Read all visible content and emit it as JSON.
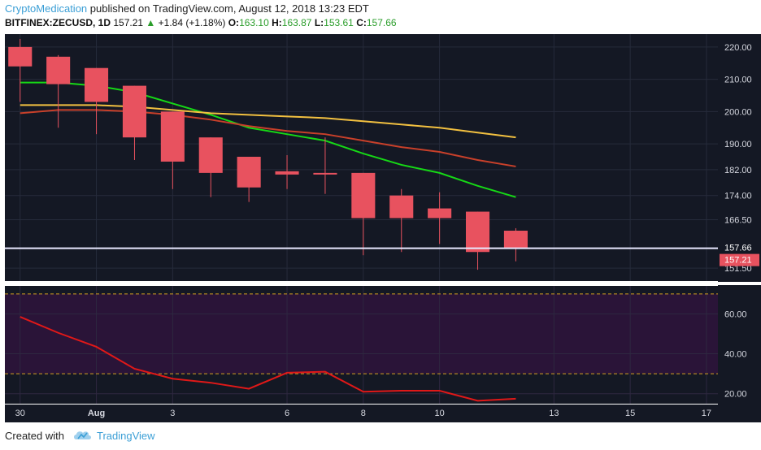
{
  "header": {
    "author": "CryptoMedication",
    "published_text": " published on TradingView.com, August 12, 2018 13:23 EDT"
  },
  "ticker": {
    "symbol": "BITFINEX:ZECUSD, 1D",
    "last": "157.21",
    "change_arrow": "▲",
    "change": "+1.84 (+1.18%)",
    "o_label": "O:",
    "o_value": "163.10",
    "h_label": "H:",
    "h_value": "163.87",
    "l_label": "L:",
    "l_value": "153.61",
    "c_label": "C:",
    "c_value": "157.66"
  },
  "footer": {
    "created_with": "Created with",
    "brand": "TradingView"
  },
  "colors": {
    "background": "#141824",
    "rsi_band": "#2a1438",
    "bull": "#e8525f",
    "bear": "#e8525f",
    "ma_fast": "#16d816",
    "ma_mid": "#c8402a",
    "ma_slow": "#f2c040",
    "rsi_line": "#e01818",
    "price_line": "#e8e8ff",
    "band_dash": "#d2a020",
    "label_bg": "#e8525f"
  },
  "chart_data": {
    "type": "candlestick",
    "title": "",
    "price_axis": {
      "min": 147.5,
      "max": 224,
      "ticks": [
        220.0,
        210.0,
        200.0,
        190.0,
        182.0,
        174.0,
        166.5,
        151.5
      ],
      "tick_labels": [
        "220.00",
        "210.00",
        "200.00",
        "190.00",
        "182.00",
        "174.00",
        "166.50",
        "151.50"
      ]
    },
    "current_price_labels": [
      {
        "value": 157.66,
        "label": "157.66"
      },
      {
        "value": 157.21,
        "label": "157.21"
      }
    ],
    "horizontal_line": 157.66,
    "x_axis": {
      "labels": [
        {
          "day": 0,
          "label": "30"
        },
        {
          "day": 2,
          "label": "Aug"
        },
        {
          "day": 4,
          "label": "3"
        },
        {
          "day": 7,
          "label": "6"
        },
        {
          "day": 9,
          "label": "8"
        },
        {
          "day": 11,
          "label": "10"
        },
        {
          "day": 14,
          "label": "13"
        },
        {
          "day": 16,
          "label": "15"
        },
        {
          "day": 18,
          "label": "17"
        }
      ],
      "day_range": [
        -0.4,
        18.3
      ]
    },
    "candles": [
      {
        "day": 0,
        "date": "Jul 30",
        "open": 220.0,
        "high": 222.5,
        "low": 203.0,
        "close": 214.0
      },
      {
        "day": 1,
        "date": "Jul 31",
        "open": 217.0,
        "high": 217.5,
        "low": 195.0,
        "close": 208.5
      },
      {
        "day": 2,
        "date": "Aug 1",
        "open": 213.5,
        "high": 213.5,
        "low": 193.0,
        "close": 203.0
      },
      {
        "day": 3,
        "date": "Aug 2",
        "open": 208.0,
        "high": 208.0,
        "low": 185.0,
        "close": 192.0
      },
      {
        "day": 4,
        "date": "Aug 3",
        "open": 200.0,
        "high": 200.0,
        "low": 176.0,
        "close": 184.5
      },
      {
        "day": 5,
        "date": "Aug 4",
        "open": 192.0,
        "high": 192.0,
        "low": 173.5,
        "close": 181.0
      },
      {
        "day": 6,
        "date": "Aug 5",
        "open": 186.0,
        "high": 186.0,
        "low": 172.0,
        "close": 176.5
      },
      {
        "day": 7,
        "date": "Aug 6",
        "open": 181.5,
        "high": 186.5,
        "low": 176.0,
        "close": 180.5
      },
      {
        "day": 8,
        "date": "Aug 7",
        "open": 181.0,
        "high": 192.0,
        "low": 174.5,
        "close": 180.5
      },
      {
        "day": 9,
        "date": "Aug 8",
        "open": 181.0,
        "high": 181.0,
        "low": 155.5,
        "close": 167.0
      },
      {
        "day": 10,
        "date": "Aug 9",
        "open": 174.0,
        "high": 176.0,
        "low": 156.5,
        "close": 167.0
      },
      {
        "day": 11,
        "date": "Aug 10",
        "open": 170.0,
        "high": 175.0,
        "low": 159.0,
        "close": 167.0
      },
      {
        "day": 12,
        "date": "Aug 11",
        "open": 169.0,
        "high": 169.0,
        "low": 151.0,
        "close": 156.5
      },
      {
        "day": 13,
        "date": "Aug 12",
        "open": 163.1,
        "high": 163.87,
        "low": 153.61,
        "close": 157.66
      }
    ],
    "moving_averages": [
      {
        "color_key": "ma_fast",
        "days": [
          0,
          1,
          2,
          3,
          4,
          5,
          6,
          7,
          8,
          9,
          10,
          11,
          12,
          13
        ],
        "values": [
          209.0,
          209.0,
          208.0,
          206.0,
          202.5,
          199.0,
          195.0,
          193.0,
          191.0,
          187.0,
          183.5,
          181.0,
          177.0,
          173.5
        ]
      },
      {
        "color_key": "ma_mid",
        "days": [
          0,
          1,
          2,
          3,
          4,
          5,
          6,
          7,
          8,
          9,
          10,
          11,
          12,
          13
        ],
        "values": [
          199.5,
          200.5,
          200.5,
          200.0,
          199.0,
          197.5,
          195.5,
          194.0,
          193.0,
          191.0,
          189.0,
          187.5,
          185.0,
          183.0
        ]
      },
      {
        "color_key": "ma_slow",
        "days": [
          0,
          1,
          2,
          3,
          4,
          5,
          6,
          7,
          8,
          9,
          10,
          11,
          12,
          13
        ],
        "values": [
          202.0,
          202.0,
          202.0,
          201.5,
          200.5,
          199.5,
          199.0,
          198.5,
          198.0,
          197.0,
          196.0,
          195.0,
          193.5,
          192.0
        ]
      }
    ],
    "rsi": {
      "min": 15,
      "max": 74,
      "ticks": [
        60.0,
        40.0,
        20.0
      ],
      "tick_labels": [
        "60.00",
        "40.00",
        "20.00"
      ],
      "band_upper": 70,
      "band_lower": 30,
      "days": [
        0,
        1,
        2,
        3,
        4,
        5,
        6,
        7,
        8,
        9,
        10,
        11,
        12,
        13
      ],
      "values": [
        58.5,
        50.5,
        43.5,
        32.5,
        27.5,
        25.5,
        22.5,
        30.5,
        31.0,
        21.0,
        21.5,
        21.5,
        16.5,
        17.5
      ]
    }
  }
}
